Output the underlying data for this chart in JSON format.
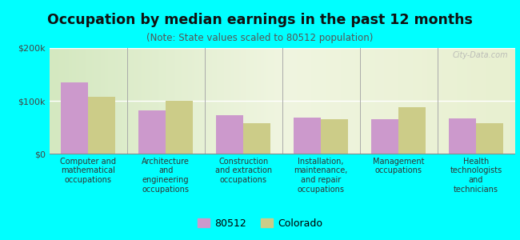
{
  "title": "Occupation by median earnings in the past 12 months",
  "subtitle": "(Note: State values scaled to 80512 population)",
  "categories": [
    "Computer and\nmathematical\noccupations",
    "Architecture\nand\nengineering\noccupations",
    "Construction\nand extraction\noccupations",
    "Installation,\nmaintenance,\nand repair\noccupations",
    "Management\noccupations",
    "Health\ntechnologists\nand\ntechnicians"
  ],
  "values_80512": [
    135000,
    82000,
    72000,
    68000,
    65000,
    67000
  ],
  "values_colorado": [
    108000,
    100000,
    57000,
    65000,
    88000,
    57000
  ],
  "bar_color_80512": "#cc99cc",
  "bar_color_colorado": "#cccc88",
  "background_color": "#00ffff",
  "ylim": [
    0,
    200000
  ],
  "yticks": [
    0,
    100000,
    200000
  ],
  "ytick_labels": [
    "$0",
    "$100k",
    "$200k"
  ],
  "legend_label_80512": "80512",
  "legend_label_colorado": "Colorado",
  "bar_width": 0.35
}
